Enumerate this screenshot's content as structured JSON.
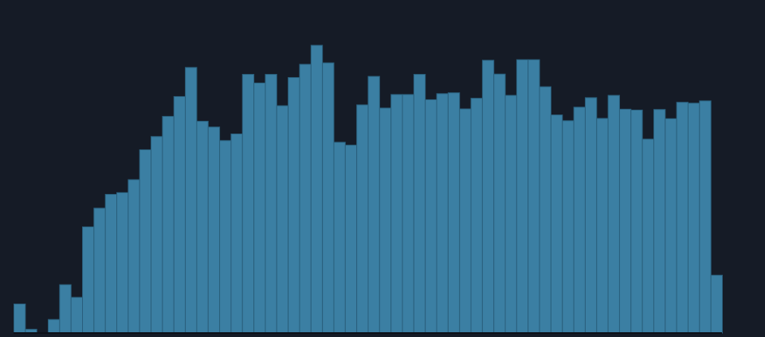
{
  "chart_data": {
    "type": "bar",
    "title": "",
    "xlabel": "",
    "ylabel": "",
    "ylim": [
      0,
      100
    ],
    "grid": false,
    "legend": "none",
    "series": [
      {
        "values": [
          10.1,
          1.3,
          0,
          4.7,
          16.8,
          12.4,
          36.9,
          43.4,
          48.2,
          48.8,
          53.3,
          63.7,
          68.3,
          75.3,
          82.2,
          92.3,
          73.6,
          71.6,
          66.9,
          69.2,
          89.9,
          86.9,
          89.9,
          79.0,
          88.8,
          93.4,
          100,
          93.9,
          66.3,
          65.3,
          79.3,
          89.2,
          78.2,
          82.9,
          82.9,
          89.9,
          81.1,
          83.2,
          83.5,
          77.9,
          81.6,
          94.8,
          90.0,
          82.6,
          95.0,
          95.0,
          85.6,
          75.8,
          73.8,
          78.5,
          81.8,
          74.6,
          82.6,
          77.8,
          77.5,
          67.4,
          77.7,
          74.5,
          80.2,
          79.9,
          80.7,
          20.1
        ]
      }
    ]
  },
  "colors": {
    "background": "#151b26",
    "bar_fill": "#3b7fa3",
    "bar_edge": "#2a5f7c"
  }
}
